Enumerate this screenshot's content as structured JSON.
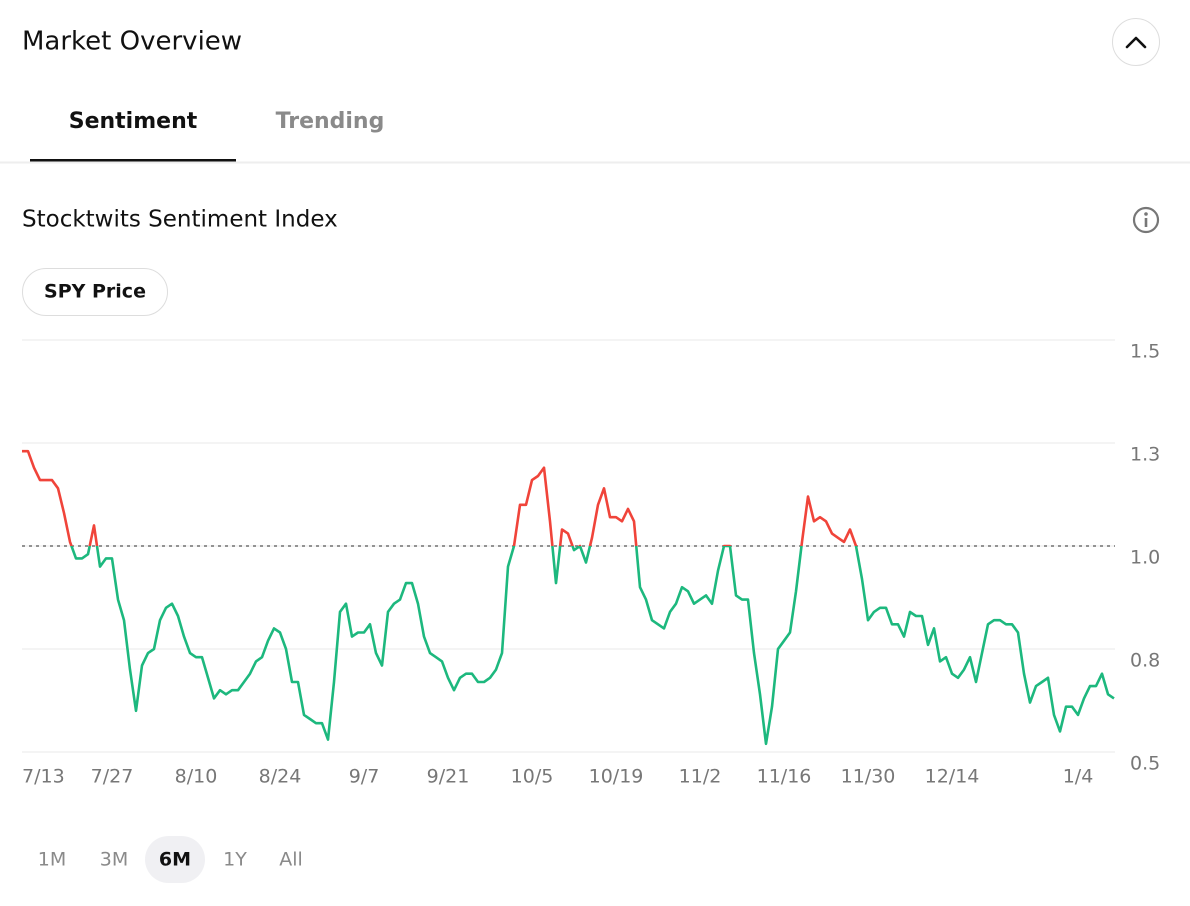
{
  "header": {
    "title": "Market Overview"
  },
  "tabs": {
    "items": [
      "Sentiment",
      "Trending"
    ],
    "active": 0
  },
  "section": {
    "title": "Stocktwits Sentiment Index",
    "toggle": "SPY Price"
  },
  "chart_data": {
    "type": "line",
    "x": [
      "7/12",
      "7/13",
      "7/14",
      "7/15",
      "7/16",
      "7/17",
      "7/18",
      "7/19",
      "7/20",
      "7/21",
      "7/22",
      "7/23",
      "7/24",
      "7/25",
      "7/26",
      "7/27",
      "7/28",
      "7/29",
      "7/30",
      "7/31",
      "8/1",
      "8/2",
      "8/3",
      "8/4",
      "8/5",
      "8/6",
      "8/7",
      "8/8",
      "8/9",
      "8/10",
      "8/11",
      "8/12",
      "8/13",
      "8/14",
      "8/15",
      "8/16",
      "8/17",
      "8/18",
      "8/19",
      "8/20",
      "8/21",
      "8/22",
      "8/23",
      "8/24",
      "8/25",
      "8/26",
      "8/27",
      "8/28",
      "8/29",
      "8/30",
      "8/31",
      "9/1",
      "9/2",
      "9/3",
      "9/4",
      "9/5",
      "9/6",
      "9/7",
      "9/8",
      "9/9",
      "9/10",
      "9/11",
      "9/12",
      "9/13",
      "9/14",
      "9/15",
      "9/16",
      "9/17",
      "9/18",
      "9/19",
      "9/20",
      "9/21",
      "9/22",
      "9/23",
      "9/24",
      "9/25",
      "9/26",
      "9/27",
      "9/28",
      "9/29",
      "9/30",
      "10/1",
      "10/2",
      "10/3",
      "10/4",
      "10/5",
      "10/6",
      "10/7",
      "10/8",
      "10/9",
      "10/10",
      "10/11",
      "10/12",
      "10/13",
      "10/14",
      "10/15",
      "10/16",
      "10/17",
      "10/18",
      "10/19",
      "10/20",
      "10/21",
      "10/22",
      "10/23",
      "10/24",
      "10/25",
      "10/26",
      "10/27",
      "10/28",
      "10/29",
      "10/30",
      "10/31",
      "11/1",
      "11/2",
      "11/3",
      "11/4",
      "11/5",
      "11/6",
      "11/7",
      "11/8",
      "11/9",
      "11/10",
      "11/11",
      "11/12",
      "11/13",
      "11/14",
      "11/15",
      "11/16",
      "11/17",
      "11/18",
      "11/19",
      "11/20",
      "11/21",
      "11/22",
      "11/23",
      "11/24",
      "11/25",
      "11/26",
      "11/27",
      "11/28",
      "11/29",
      "11/30",
      "12/1",
      "12/2",
      "12/3",
      "12/4",
      "12/5",
      "12/6",
      "12/7",
      "12/8",
      "12/9",
      "12/10",
      "12/11",
      "12/12",
      "12/13",
      "12/14",
      "12/15",
      "12/16",
      "12/17",
      "12/18",
      "12/19",
      "12/20",
      "12/21",
      "12/22",
      "12/23",
      "12/24",
      "12/25",
      "12/26",
      "12/27",
      "12/28",
      "12/29",
      "12/30",
      "12/31",
      "1/1",
      "1/2",
      "1/3",
      "1/4",
      "1/5",
      "1/6",
      "1/7",
      "1/8",
      "1/9",
      "1/10"
    ],
    "values": [
      1.23,
      1.23,
      1.19,
      1.16,
      1.16,
      1.16,
      1.14,
      1.08,
      1.01,
      0.97,
      0.97,
      0.98,
      1.05,
      0.95,
      0.97,
      0.97,
      0.87,
      0.82,
      0.7,
      0.6,
      0.71,
      0.74,
      0.75,
      0.82,
      0.85,
      0.86,
      0.83,
      0.78,
      0.74,
      0.73,
      0.73,
      0.68,
      0.63,
      0.65,
      0.64,
      0.65,
      0.65,
      0.67,
      0.69,
      0.72,
      0.73,
      0.77,
      0.8,
      0.79,
      0.75,
      0.67,
      0.67,
      0.59,
      0.58,
      0.57,
      0.57,
      0.53,
      0.67,
      0.84,
      0.86,
      0.78,
      0.79,
      0.79,
      0.81,
      0.74,
      0.71,
      0.84,
      0.86,
      0.87,
      0.91,
      0.91,
      0.86,
      0.78,
      0.74,
      0.73,
      0.72,
      0.68,
      0.65,
      0.68,
      0.69,
      0.69,
      0.67,
      0.67,
      0.68,
      0.7,
      0.74,
      0.95,
      1.0,
      1.1,
      1.1,
      1.16,
      1.17,
      1.19,
      1.06,
      0.91,
      1.04,
      1.03,
      0.99,
      1.0,
      0.96,
      1.02,
      1.1,
      1.14,
      1.07,
      1.07,
      1.06,
      1.09,
      1.06,
      0.9,
      0.87,
      0.82,
      0.81,
      0.8,
      0.84,
      0.86,
      0.9,
      0.89,
      0.86,
      0.87,
      0.88,
      0.86,
      0.94,
      1.0,
      1.0,
      0.88,
      0.87,
      0.87,
      0.74,
      0.64,
      0.52,
      0.61,
      0.75,
      0.77,
      0.79,
      0.89,
      1.01,
      1.12,
      1.06,
      1.07,
      1.06,
      1.03,
      1.02,
      1.01,
      1.04,
      1.0,
      0.92,
      0.82,
      0.84,
      0.85,
      0.85,
      0.81,
      0.81,
      0.78,
      0.84,
      0.83,
      0.83,
      0.76,
      0.8,
      0.72,
      0.73,
      0.69,
      0.68,
      0.7,
      0.73,
      0.67,
      0.74,
      0.81,
      0.82,
      0.82,
      0.81,
      0.81,
      0.79,
      0.69,
      0.62,
      0.66,
      0.67,
      0.68,
      0.59,
      0.55,
      0.61,
      0.61,
      0.59,
      0.63,
      0.66,
      0.66,
      0.69,
      0.64,
      0.63
    ],
    "xlim": [
      "7/12",
      "1/10"
    ],
    "xticks": [
      "7/13",
      "7/27",
      "8/10",
      "8/24",
      "9/7",
      "9/21",
      "10/5",
      "10/19",
      "11/2",
      "11/16",
      "11/30",
      "12/14",
      "1/4"
    ],
    "ylim": [
      0.5,
      1.5
    ],
    "yticks": [
      0.5,
      {
        "value": 0.75,
        "label": "0.8"
      },
      {
        "value": 1,
        "label": "1.0"
      },
      {
        "value": 1.25,
        "label": "1.3"
      },
      1.5
    ],
    "reference_line": 1,
    "color_above": "#f0443a",
    "color_below": "#1db87e",
    "grid": true
  },
  "ranges": {
    "items": [
      "1M",
      "3M",
      "6M",
      "1Y",
      "All"
    ],
    "active": 2
  }
}
